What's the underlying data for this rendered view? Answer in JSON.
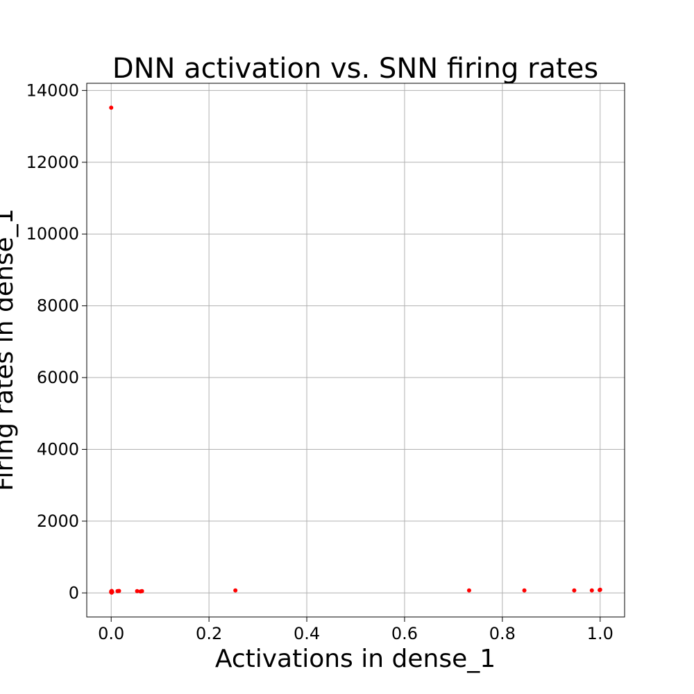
{
  "chart_data": {
    "type": "scatter",
    "title": "DNN activation vs. SNN firing rates",
    "xlabel": "Activations in dense_1",
    "ylabel": "Firing rates in dense_1",
    "xlim": [
      -0.05,
      1.05
    ],
    "ylim": [
      -670,
      14200
    ],
    "xticks": [
      0.0,
      0.2,
      0.4,
      0.6,
      0.8,
      1.0
    ],
    "xtick_labels": [
      "0.0",
      "0.2",
      "0.4",
      "0.6",
      "0.8",
      "1.0"
    ],
    "yticks": [
      0,
      2000,
      4000,
      6000,
      8000,
      10000,
      12000,
      14000
    ],
    "ytick_labels": [
      "0",
      "2000",
      "4000",
      "6000",
      "8000",
      "10000",
      "12000",
      "14000"
    ],
    "grid": true,
    "marker_color": "#ff0000",
    "points": [
      {
        "x": 0.0,
        "y": 13520
      },
      {
        "x": 0.0,
        "y": 20
      },
      {
        "x": 0.0,
        "y": 40
      },
      {
        "x": 0.001,
        "y": 10
      },
      {
        "x": 0.001,
        "y": 55
      },
      {
        "x": 0.002,
        "y": 30
      },
      {
        "x": 0.013,
        "y": 50
      },
      {
        "x": 0.016,
        "y": 55
      },
      {
        "x": 0.053,
        "y": 50
      },
      {
        "x": 0.06,
        "y": 40
      },
      {
        "x": 0.063,
        "y": 50
      },
      {
        "x": 0.254,
        "y": 70
      },
      {
        "x": 0.732,
        "y": 70
      },
      {
        "x": 0.845,
        "y": 70
      },
      {
        "x": 0.947,
        "y": 70
      },
      {
        "x": 0.983,
        "y": 70
      },
      {
        "x": 0.999,
        "y": 80
      },
      {
        "x": 1.0,
        "y": 90
      }
    ]
  }
}
